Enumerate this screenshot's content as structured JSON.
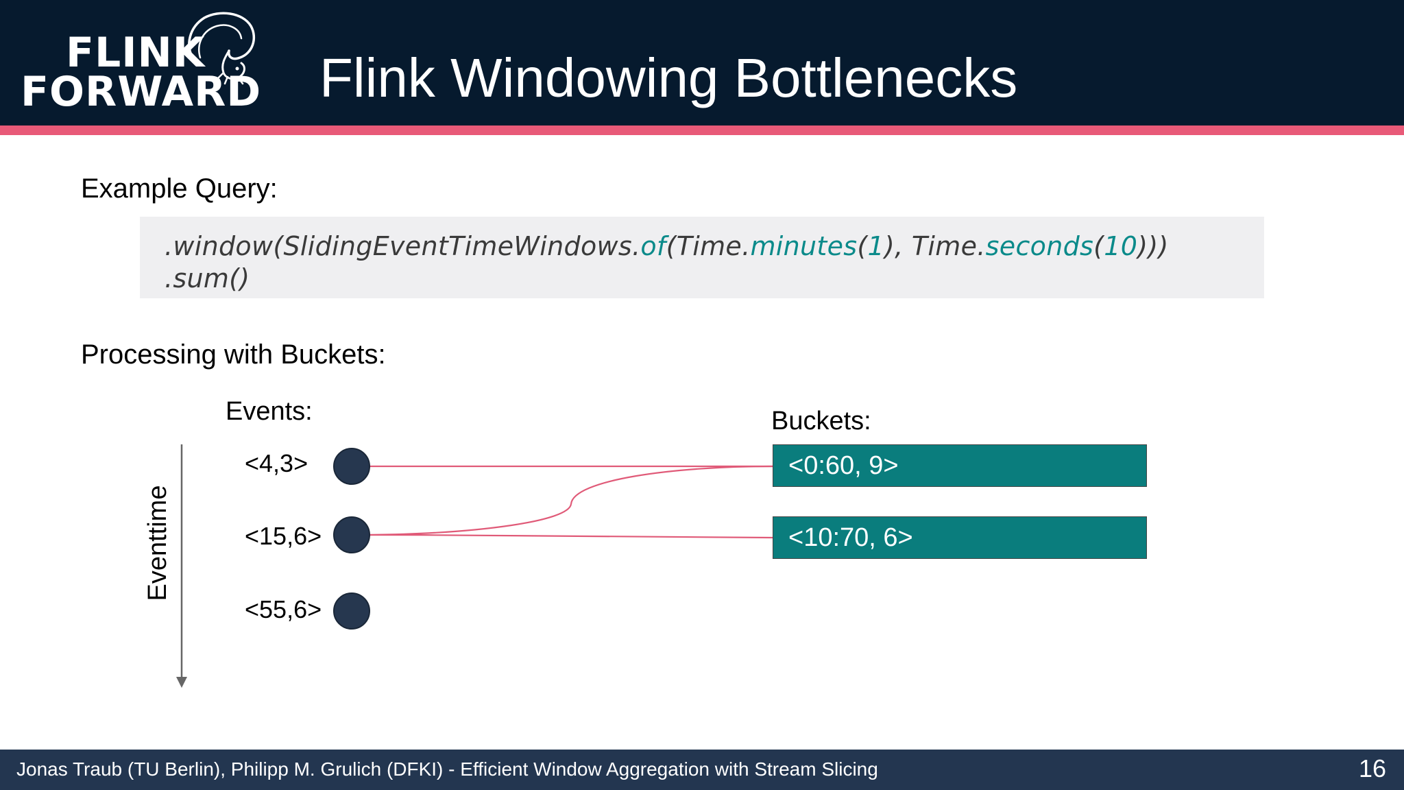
{
  "header": {
    "logo_line_1": "FLINK",
    "logo_line_2": "FORWARD",
    "title": "Flink Windowing Bottlenecks",
    "accent_color": "#e85a78",
    "background_color": "#061a2e"
  },
  "example_query": {
    "label": "Example Query:",
    "line_1": {
      "p1": ".window(SlidingEventTimeWindows.",
      "p2": "of",
      "p3": "(Time.",
      "p4": "minutes",
      "p5": "(",
      "p6": "1",
      "p7": "), Time.",
      "p8": "seconds",
      "p9": "(",
      "p10": "10",
      "p11": ")))"
    },
    "line_2": ".sum()",
    "keyword_color": "#0a8a8a"
  },
  "processing": {
    "label": "Processing with Buckets:",
    "events_label": "Events:",
    "buckets_label": "Buckets:",
    "axis_label": "Eventtime",
    "events": [
      "<4,3>",
      "<15,6>",
      "<55,6>"
    ],
    "buckets": [
      "<0:60, 9>",
      "<10:70, 6>"
    ],
    "bucket_color": "#0a7d7d",
    "connector_color": "#e05a78"
  },
  "footer": {
    "text": "Jonas Traub (TU Berlin), Philipp M. Grulich (DFKI) - Efficient Window Aggregation with Stream Slicing",
    "page_number": "16"
  }
}
